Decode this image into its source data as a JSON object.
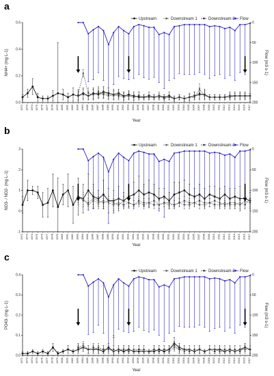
{
  "figure": {
    "years": [
      1972,
      1973,
      1974,
      1975,
      1976,
      1977,
      1978,
      1979,
      1980,
      1981,
      1982,
      1983,
      1984,
      1985,
      1986,
      1987,
      1988,
      1989,
      1990,
      1991,
      1992,
      1993,
      1994,
      1995,
      1996,
      1997,
      1998,
      1999,
      2000,
      2001,
      2002,
      2003,
      2004,
      2005,
      2006,
      2007,
      2008,
      2009,
      2010,
      2011,
      2012,
      2013,
      2014,
      2015,
      2016,
      2017
    ],
    "legend": [
      "Upstream",
      "Downstream 1",
      "Downstream 2",
      "Flow"
    ],
    "colors": {
      "upstream": "#111111",
      "downstream1": "#555555",
      "downstream2": "#333333",
      "flow": "#2a1fbf"
    },
    "flow": {
      "years": [
        1983,
        1984,
        1985,
        1986,
        1987,
        1988,
        1989,
        1990,
        1991,
        1992,
        1993,
        1994,
        1995,
        1996,
        1997,
        1998,
        1999,
        2000,
        2001,
        2002,
        2003,
        2004,
        2005,
        2006,
        2007,
        2008,
        2009,
        2010,
        2011,
        2012,
        2013,
        2014,
        2015,
        2016,
        2017
      ],
      "values": [
        0,
        0,
        28,
        18,
        10,
        20,
        55,
        25,
        10,
        20,
        28,
        10,
        5,
        8,
        12,
        12,
        30,
        25,
        30,
        10,
        8,
        5,
        5,
        5,
        5,
        5,
        10,
        8,
        10,
        15,
        12,
        20,
        5,
        5,
        2
      ],
      "err": [
        0,
        0,
        120,
        125,
        115,
        125,
        125,
        130,
        125,
        120,
        115,
        130,
        125,
        130,
        130,
        125,
        120,
        140,
        115,
        130,
        120,
        125,
        125,
        125,
        120,
        125,
        130,
        125,
        120,
        125,
        120,
        125,
        120,
        125,
        0
      ]
    }
  },
  "chart_data": [
    {
      "type": "line",
      "panel_label": "a",
      "xlabel": "Year",
      "ylabel": "NH4+ (mg·L-1)",
      "ylabel_right": "Flow (m3 s-1)",
      "ylim": [
        0,
        0.6
      ],
      "yticks": [
        "0.0",
        "0.2",
        "0.4",
        "0.6"
      ],
      "ylim_right": [
        200,
        0
      ],
      "yticks_right": [
        "0",
        "50",
        "100",
        "150",
        "200"
      ],
      "arrows": [
        1983,
        1993,
        2016
      ],
      "series": [
        {
          "name": "Upstream",
          "values": [
            0.04,
            0.07,
            0.12,
            0.04,
            0.03,
            0.03,
            0.05,
            0.07,
            0.06,
            0.04,
            0.06,
            0.05,
            0.07,
            0.05,
            0.07,
            0.06,
            0.08,
            0.07,
            0.06,
            0.07,
            0.05,
            0.06,
            0.05,
            0.04,
            0.04,
            0.05,
            0.04,
            0.05,
            0.04,
            0.05,
            0.03,
            0.04,
            0.03,
            0.04,
            0.05,
            0.06,
            0.06,
            0.04,
            0.04,
            0.04,
            0.04,
            0.05,
            0.05,
            0.05,
            0.05,
            0.05
          ],
          "err": [
            0.02,
            0.03,
            0.06,
            0.03,
            0.02,
            0.02,
            0.04,
            0.38,
            0.04,
            0.03,
            0.05,
            0.04,
            0.04,
            0.03,
            0.04,
            0.03,
            0.04,
            0.04,
            0.04,
            0.03,
            0.03,
            0.03,
            0.03,
            0.02,
            0.02,
            0.03,
            0.02,
            0.02,
            0.02,
            0.03,
            0.02,
            0.02,
            0.02,
            0.03,
            0.03,
            0.04,
            0.04,
            0.02,
            0.02,
            0.02,
            0.02,
            0.03,
            0.03,
            0.03,
            0.03,
            0.02
          ]
        },
        {
          "name": "Downstream 1",
          "values": [
            null,
            null,
            null,
            null,
            null,
            null,
            null,
            null,
            null,
            null,
            null,
            0.06,
            0.22,
            0.07,
            0.06,
            0.08,
            0.07,
            0.06,
            0.05,
            0.06,
            0.04,
            0.05,
            0.04,
            0.05,
            0.04,
            0.04,
            0.04,
            0.05,
            0.03,
            0.04,
            0.03,
            0.04,
            0.03,
            0.04,
            0.04,
            0.1,
            0.05,
            0.04,
            0.04,
            0.04,
            0.04,
            0.05,
            0.05,
            0.05,
            0.05,
            0.05
          ],
          "err": [
            null,
            null,
            null,
            null,
            null,
            null,
            null,
            null,
            null,
            null,
            null,
            0.04,
            0.03,
            0.04,
            0.04,
            0.04,
            0.04,
            0.03,
            0.03,
            0.03,
            0.03,
            0.03,
            0.03,
            0.03,
            0.02,
            0.02,
            0.02,
            0.03,
            0.02,
            0.02,
            0.02,
            0.02,
            0.02,
            0.02,
            0.02,
            0.04,
            0.03,
            0.02,
            0.02,
            0.02,
            0.02,
            0.02,
            0.02,
            0.02,
            0.02,
            0.02
          ]
        },
        {
          "name": "Downstream 2",
          "values": [
            null,
            null,
            null,
            null,
            null,
            null,
            null,
            null,
            null,
            null,
            null,
            0.05,
            0.06,
            0.05,
            0.06,
            0.07,
            0.06,
            0.05,
            0.06,
            0.05,
            0.05,
            0.05,
            0.04,
            0.05,
            0.04,
            0.04,
            0.04,
            0.04,
            0.04,
            0.04,
            0.03,
            0.04,
            0.03,
            0.04,
            0.05,
            0.07,
            0.06,
            0.04,
            0.04,
            0.04,
            0.04,
            0.04,
            0.05,
            0.05,
            0.05,
            0.05
          ],
          "err": [
            null,
            null,
            null,
            null,
            null,
            null,
            null,
            null,
            null,
            null,
            null,
            0.03,
            0.04,
            0.03,
            0.04,
            0.04,
            0.03,
            0.03,
            0.03,
            0.03,
            0.03,
            0.03,
            0.02,
            0.03,
            0.02,
            0.02,
            0.02,
            0.02,
            0.02,
            0.02,
            0.02,
            0.02,
            0.02,
            0.02,
            0.03,
            0.04,
            0.03,
            0.02,
            0.02,
            0.02,
            0.02,
            0.02,
            0.02,
            0.02,
            0.02,
            0.02
          ]
        }
      ]
    },
    {
      "type": "line",
      "panel_label": "b",
      "xlabel": "Year",
      "ylabel": "NO3- / NO2- (mg·L-1)",
      "ylabel_right": "Flow (m3 s-1)",
      "ylim": [
        -1,
        3
      ],
      "yticks": [
        "-1",
        "0",
        "1",
        "2",
        "3"
      ],
      "ylim_right": [
        200,
        0
      ],
      "yticks_right": [
        "0",
        "50",
        "100",
        "150",
        "200"
      ],
      "arrows": [
        1983,
        1993,
        2016
      ],
      "series": [
        {
          "name": "Upstream",
          "values": [
            0.3,
            1.0,
            1.0,
            0.9,
            0.3,
            0.4,
            1.0,
            0.2,
            0.8,
            1.0,
            0.3,
            0.7,
            0.6,
            1.0,
            0.7,
            0.6,
            0.8,
            0.5,
            0.5,
            0.6,
            0.5,
            0.7,
            0.8,
            1.0,
            0.8,
            0.9,
            0.8,
            0.6,
            0.7,
            0.5,
            0.8,
            0.9,
            1.0,
            0.8,
            0.7,
            0.8,
            0.6,
            0.8,
            0.7,
            0.6,
            0.8,
            0.6,
            0.7,
            0.6,
            0.6,
            0.5
          ],
          "err": [
            0.4,
            0.5,
            0.2,
            0.3,
            0.6,
            0.7,
            0.8,
            1.4,
            0.5,
            0.8,
            0.9,
            0.9,
            0.7,
            0.8,
            0.6,
            0.4,
            0.7,
            0.6,
            0.5,
            0.6,
            0.4,
            0.5,
            0.6,
            0.7,
            0.5,
            0.6,
            0.5,
            0.5,
            0.4,
            0.4,
            0.6,
            0.5,
            0.5,
            0.5,
            0.4,
            0.5,
            0.5,
            0.4,
            0.5,
            0.5,
            0.4,
            0.5,
            0.4,
            0.6,
            0.5,
            0.4
          ]
        },
        {
          "name": "Downstream 1",
          "values": [
            null,
            null,
            null,
            null,
            null,
            null,
            null,
            null,
            null,
            null,
            null,
            0.6,
            0.6,
            0.3,
            0.5,
            0.4,
            0.5,
            0.4,
            0.3,
            0.4,
            0.3,
            0.4,
            0.3,
            0.4,
            0.3,
            0.4,
            0.3,
            0.3,
            0.4,
            0.3,
            0.3,
            0.4,
            0.3,
            0.3,
            0.4,
            0.3,
            0.3,
            0.4,
            0.3,
            0.3,
            0.4,
            0.3,
            0.3,
            0.4,
            0.3,
            0.6
          ],
          "err": [
            null,
            null,
            null,
            null,
            null,
            null,
            null,
            null,
            null,
            null,
            null,
            0.3,
            0.3,
            0.2,
            0.3,
            0.3,
            0.2,
            0.2,
            0.2,
            0.2,
            0.2,
            0.2,
            0.2,
            0.2,
            0.2,
            0.2,
            0.2,
            0.2,
            0.2,
            0.2,
            0.2,
            0.2,
            0.2,
            0.2,
            0.2,
            0.2,
            0.2,
            0.2,
            0.2,
            0.2,
            0.2,
            0.2,
            0.2,
            0.2,
            0.2,
            0.3
          ]
        },
        {
          "name": "Downstream 2",
          "values": [
            null,
            null,
            null,
            null,
            null,
            null,
            null,
            null,
            null,
            null,
            null,
            0.7,
            0.5,
            0.4,
            0.6,
            0.5,
            0.4,
            0.5,
            0.4,
            0.3,
            0.5,
            0.4,
            0.3,
            0.5,
            0.4,
            0.4,
            0.5,
            0.3,
            0.4,
            0.4,
            0.3,
            0.4,
            0.5,
            0.4,
            0.4,
            0.5,
            0.4,
            0.4,
            0.5,
            0.4,
            0.3,
            0.4,
            0.4,
            0.3,
            0.5,
            0.4
          ],
          "err": [
            null,
            null,
            null,
            null,
            null,
            null,
            null,
            null,
            null,
            null,
            null,
            0.3,
            0.3,
            0.2,
            0.3,
            0.2,
            0.2,
            0.2,
            0.2,
            0.2,
            0.2,
            0.2,
            0.2,
            0.2,
            0.2,
            0.2,
            0.2,
            0.2,
            0.2,
            0.2,
            0.2,
            0.2,
            0.2,
            0.2,
            0.2,
            0.2,
            0.2,
            0.2,
            0.2,
            0.2,
            0.2,
            0.2,
            0.2,
            0.2,
            0.2,
            0.2
          ]
        }
      ]
    },
    {
      "type": "line",
      "panel_label": "c",
      "xlabel": "Year",
      "ylabel": "PO43- (mg·L-1)",
      "ylabel_right": "Flow (m3 s-1)",
      "ylim": [
        0,
        0.4
      ],
      "yticks": [
        "0.0",
        "0.1",
        "0.2",
        "0.3",
        "0.4"
      ],
      "ylim_right": [
        200,
        0
      ],
      "yticks_right": [
        "0",
        "50",
        "100",
        "150",
        "200"
      ],
      "arrows": [
        1983,
        1993,
        2016
      ],
      "series": [
        {
          "name": "Upstream",
          "values": [
            0.01,
            0.01,
            0.02,
            0.01,
            0.02,
            0.01,
            0.04,
            0.01,
            0.02,
            0.03,
            0.02,
            0.03,
            0.04,
            0.03,
            0.03,
            0.03,
            0.02,
            0.04,
            0.02,
            0.03,
            0.02,
            0.03,
            0.02,
            0.02,
            0.02,
            0.02,
            0.02,
            0.03,
            0.02,
            0.03,
            0.06,
            0.04,
            0.03,
            0.03,
            0.02,
            0.03,
            0.02,
            0.03,
            0.03,
            0.03,
            0.02,
            0.03,
            0.02,
            0.03,
            0.04,
            0.03
          ],
          "err": [
            0.01,
            0.01,
            0.01,
            0.01,
            0.01,
            0.01,
            0.02,
            0.01,
            0.01,
            0.02,
            0.01,
            0.02,
            0.02,
            0.02,
            0.02,
            0.02,
            0.01,
            0.02,
            0.08,
            0.02,
            0.01,
            0.02,
            0.01,
            0.01,
            0.01,
            0.01,
            0.01,
            0.02,
            0.01,
            0.02,
            0.03,
            0.02,
            0.02,
            0.02,
            0.01,
            0.02,
            0.01,
            0.02,
            0.02,
            0.02,
            0.01,
            0.02,
            0.01,
            0.02,
            0.02,
            0.02
          ]
        },
        {
          "name": "Downstream 1",
          "values": [
            null,
            null,
            null,
            null,
            null,
            null,
            null,
            null,
            null,
            null,
            null,
            0.04,
            0.05,
            0.03,
            0.03,
            0.04,
            0.03,
            0.03,
            0.02,
            0.03,
            0.03,
            0.02,
            0.03,
            0.03,
            0.02,
            0.02,
            0.03,
            0.02,
            0.03,
            0.02,
            0.04,
            0.03,
            0.02,
            0.03,
            0.02,
            0.03,
            0.02,
            0.03,
            0.03,
            0.02,
            0.02,
            0.03,
            0.02,
            0.03,
            0.03,
            0.03
          ],
          "err": [
            null,
            null,
            null,
            null,
            null,
            null,
            null,
            null,
            null,
            null,
            null,
            0.02,
            0.02,
            0.02,
            0.02,
            0.02,
            0.02,
            0.02,
            0.01,
            0.02,
            0.02,
            0.01,
            0.02,
            0.02,
            0.01,
            0.01,
            0.02,
            0.01,
            0.02,
            0.01,
            0.02,
            0.02,
            0.01,
            0.02,
            0.01,
            0.02,
            0.01,
            0.02,
            0.02,
            0.01,
            0.01,
            0.02,
            0.01,
            0.02,
            0.02,
            0.02
          ]
        },
        {
          "name": "Downstream 2",
          "values": [
            null,
            null,
            null,
            null,
            null,
            null,
            null,
            null,
            null,
            null,
            null,
            0.04,
            0.04,
            0.03,
            0.04,
            0.03,
            0.03,
            0.03,
            0.03,
            0.02,
            0.03,
            0.03,
            0.02,
            0.03,
            0.03,
            0.02,
            0.03,
            0.02,
            0.03,
            0.03,
            0.05,
            0.03,
            0.03,
            0.02,
            0.03,
            0.03,
            0.02,
            0.03,
            0.02,
            0.03,
            0.03,
            0.02,
            0.03,
            0.02,
            0.04,
            0.03
          ],
          "err": [
            null,
            null,
            null,
            null,
            null,
            null,
            null,
            null,
            null,
            null,
            null,
            0.02,
            0.02,
            0.02,
            0.02,
            0.02,
            0.02,
            0.02,
            0.02,
            0.01,
            0.02,
            0.02,
            0.01,
            0.02,
            0.02,
            0.01,
            0.02,
            0.01,
            0.02,
            0.02,
            0.02,
            0.02,
            0.02,
            0.01,
            0.02,
            0.02,
            0.01,
            0.02,
            0.01,
            0.02,
            0.02,
            0.01,
            0.02,
            0.01,
            0.02,
            0.02
          ]
        }
      ]
    }
  ]
}
